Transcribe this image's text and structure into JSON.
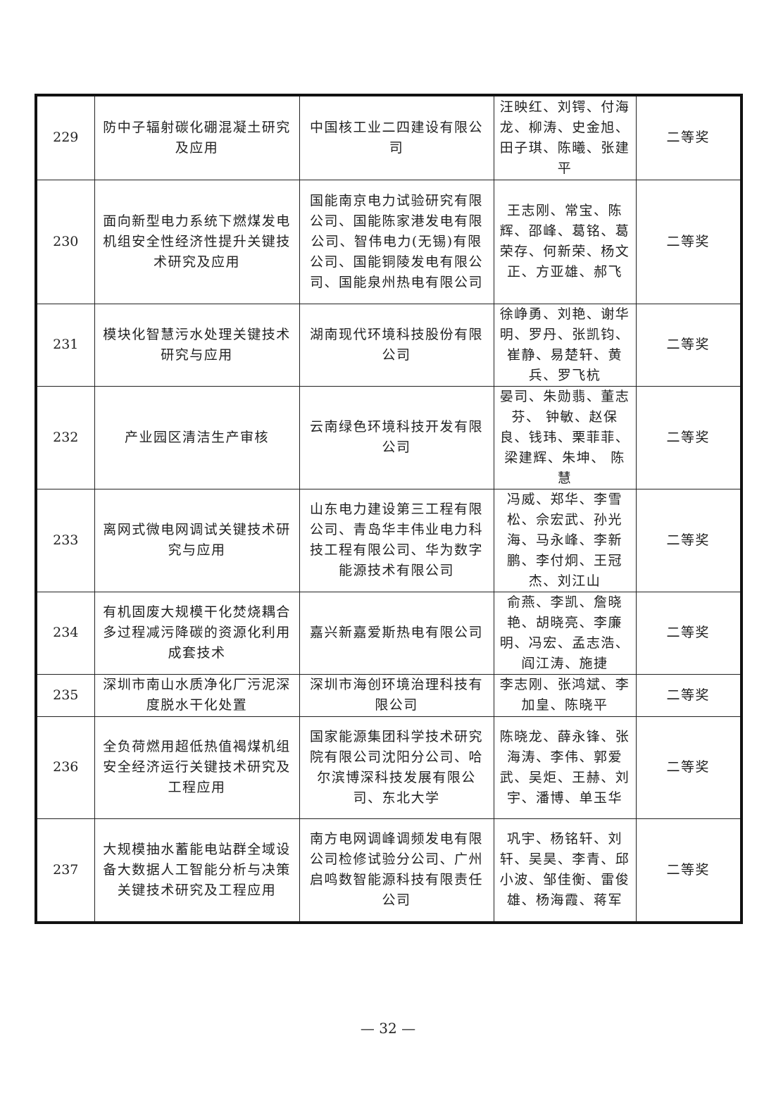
{
  "rows": [
    {
      "no": "229",
      "project": "防中子辐射碳化硼混凝土研究及应用",
      "unit": "中国核工业二四建设有限公司",
      "people": "汪映红、刘锷、付海龙、柳涛、史金旭、田子琪、陈曦、张建平",
      "award": "二等奖"
    },
    {
      "no": "230",
      "project": "面向新型电力系统下燃煤发电机组安全性经济性提升关键技术研究及应用",
      "unit": "国能南京电力试验研究有限公司、国能陈家港发电有限公司、智伟电力(无锡)有限公司、国能铜陵发电有限公司、国能泉州热电有限公司",
      "people": "王志刚、常宝、陈辉、邵峰、葛铭、葛荣存、何新荣、杨文正、方亚雄、郝飞",
      "award": "二等奖"
    },
    {
      "no": "231",
      "project": "模块化智慧污水处理关键技术研究与应用",
      "unit": "湖南现代环境科技股份有限公司",
      "people": "徐峥勇、刘艳、谢华明、罗丹、张凯钧、崔静、易楚轩、黄兵、罗飞杭",
      "award": "二等奖"
    },
    {
      "no": "232",
      "project": "产业园区清洁生产审核",
      "unit": "云南绿色环境科技开发有限公司",
      "people": "晏司、朱勋翡、董志芬、 钟敏、赵保良、钱玮、栗菲菲、梁建辉、朱坤、 陈慧",
      "award": "二等奖"
    },
    {
      "no": "233",
      "project": "离网式微电网调试关键技术研究与应用",
      "unit": "山东电力建设第三工程有限公司、青岛华丰伟业电力科技工程有限公司、华为数字能源技术有限公司",
      "people": "冯威、郑华、李雪松、佘宏武、孙光海、马永峰、李新鹏、李付炯、王冠杰、刘江山",
      "award": "二等奖"
    },
    {
      "no": "234",
      "project": "有机固废大规模干化焚烧耦合多过程减污降碳的资源化利用成套技术",
      "unit": "嘉兴新嘉爱斯热电有限公司",
      "people": "俞燕、李凯、詹晓艳、胡晓亮、李廉明、冯宏、孟志浩、阎江涛、施捷",
      "award": "二等奖"
    },
    {
      "no": "235",
      "project": "深圳市南山水质净化厂污泥深度脱水干化处置",
      "unit": "深圳市海创环境治理科技有限公司",
      "people": "李志刚、张鸿斌、李加皇、陈晓平",
      "award": "二等奖"
    },
    {
      "no": "236",
      "project": "全负荷燃用超低热值褐煤机组安全经济运行关键技术研究及工程应用",
      "unit": "国家能源集团科学技术研究院有限公司沈阳分公司、哈尔滨博深科技发展有限公司、东北大学",
      "people": "陈晓龙、薛永锋、张海涛、李伟、郭爱武、吴炬、王赫、刘宇、潘博、单玉华",
      "award": "二等奖"
    },
    {
      "no": "237",
      "project": "大规模抽水蓄能电站群全域设备大数据人工智能分析与决策关键技术研究及工程应用",
      "unit": "南方电网调峰调频发电有限公司检修试验分公司、广州启鸣数智能源科技有限责任公司",
      "people": "巩宇、杨铭轩、刘轩、吴昊、李青、邱小波、邹佳衡、雷俊雄、杨海霞、蒋军",
      "award": "二等奖"
    }
  ],
  "page_number": "— 32 —"
}
